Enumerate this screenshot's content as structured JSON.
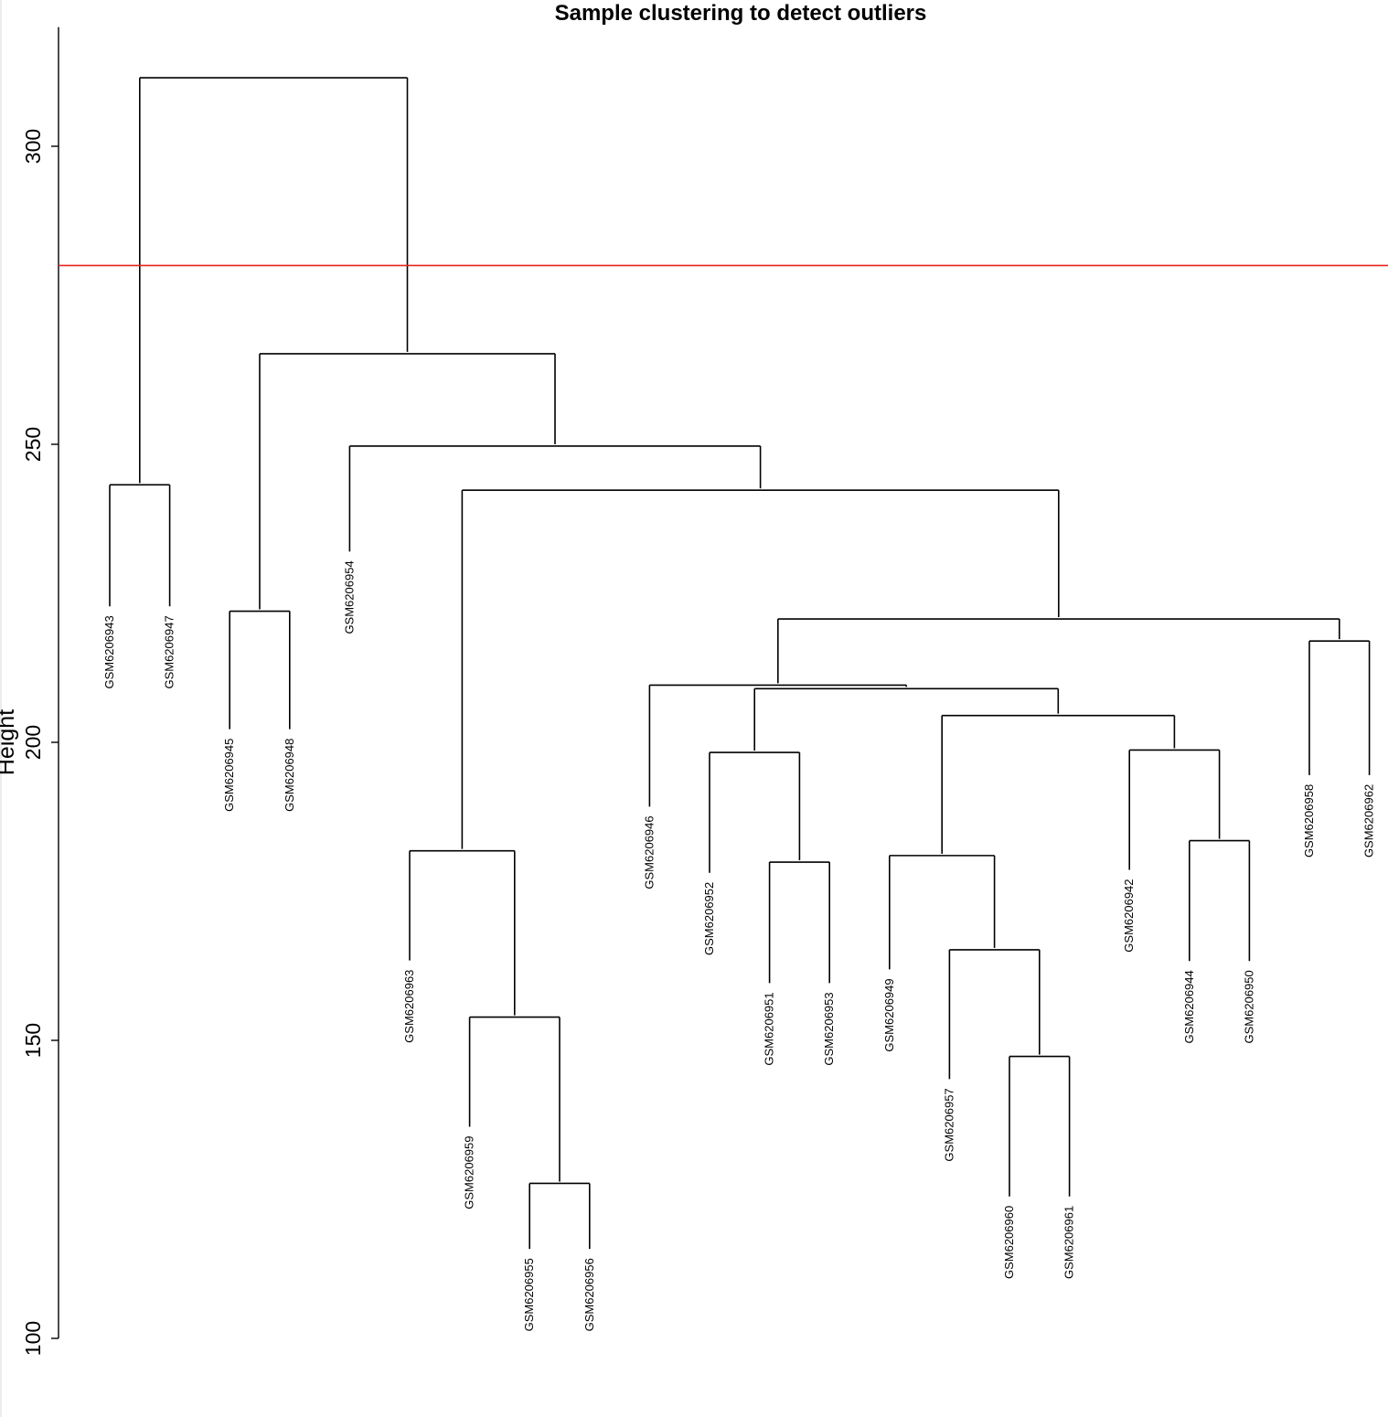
{
  "chart_data": {
    "type": "dendrogram",
    "title": "Sample clustering to detect outliers",
    "ylabel": "Height",
    "xlabel": "",
    "ylim": [
      100,
      320
    ],
    "yticks": [
      100,
      150,
      200,
      250,
      300
    ],
    "cut_height": 280,
    "colors": {
      "branches": "#000000",
      "cut_line": "#e8231f"
    },
    "leaves": [
      {
        "name": "GSM6206943",
        "height": 222.5
      },
      {
        "name": "GSM6206947",
        "height": 222.5
      },
      {
        "name": "GSM6206945",
        "height": 201.9
      },
      {
        "name": "GSM6206948",
        "height": 201.9
      },
      {
        "name": "GSM6206954",
        "height": 231.7
      },
      {
        "name": "GSM6206963",
        "height": 163.1
      },
      {
        "name": "GSM6206959",
        "height": 135.2
      },
      {
        "name": "GSM6206955",
        "height": 114.7
      },
      {
        "name": "GSM6206956",
        "height": 114.7
      },
      {
        "name": "GSM6206946",
        "height": 188.9
      },
      {
        "name": "GSM6206952",
        "height": 177.8
      },
      {
        "name": "GSM6206951",
        "height": 159.3
      },
      {
        "name": "GSM6206953",
        "height": 159.3
      },
      {
        "name": "GSM6206949",
        "height": 161.6
      },
      {
        "name": "GSM6206957",
        "height": 143.2
      },
      {
        "name": "GSM6206960",
        "height": 123.5
      },
      {
        "name": "GSM6206961",
        "height": 123.5
      },
      {
        "name": "GSM6206942",
        "height": 178.3
      },
      {
        "name": "GSM6206944",
        "height": 163.0
      },
      {
        "name": "GSM6206950",
        "height": 163.0
      },
      {
        "name": "GSM6206958",
        "height": 194.2
      },
      {
        "name": "GSM6206962",
        "height": 194.2
      }
    ],
    "merges": [
      {
        "id": "m1",
        "left": "L0",
        "right": "L1",
        "height": 243.2
      },
      {
        "id": "m2",
        "left": "L2",
        "right": "L3",
        "height": 222.0
      },
      {
        "id": "m3",
        "left": "L7",
        "right": "L8",
        "height": 126.0
      },
      {
        "id": "m4",
        "left": "L6",
        "right": "m3",
        "height": 153.9
      },
      {
        "id": "m5",
        "left": "L5",
        "right": "m4",
        "height": 181.8
      },
      {
        "id": "m6",
        "left": "L11",
        "right": "L12",
        "height": 179.9
      },
      {
        "id": "m7",
        "left": "L10",
        "right": "m6",
        "height": 198.3
      },
      {
        "id": "m8",
        "left": "L15",
        "right": "L16",
        "height": 147.3
      },
      {
        "id": "m9",
        "left": "L14",
        "right": "m8",
        "height": 165.2
      },
      {
        "id": "m10",
        "left": "L13",
        "right": "m9",
        "height": 181.0
      },
      {
        "id": "m11",
        "left": "L18",
        "right": "L19",
        "height": 183.5
      },
      {
        "id": "m12",
        "left": "L17",
        "right": "m11",
        "height": 198.7
      },
      {
        "id": "m13",
        "left": "m10",
        "right": "m12",
        "height": 204.5
      },
      {
        "id": "m14",
        "left": "m7",
        "right": "m13",
        "height": 209.0
      },
      {
        "id": "m15",
        "left": "L9",
        "right": "m14",
        "height": 209.6
      },
      {
        "id": "m16",
        "left": "L20",
        "right": "L21",
        "height": 217.0
      },
      {
        "id": "m17",
        "left": "m15",
        "right": "m16",
        "height": 220.7
      },
      {
        "id": "m18",
        "left": "m5",
        "right": "m17",
        "height": 242.3
      },
      {
        "id": "m19",
        "left": "L4",
        "right": "m18",
        "height": 249.7
      },
      {
        "id": "m20",
        "left": "m2",
        "right": "m19",
        "height": 265.2
      },
      {
        "id": "m21",
        "left": "m1",
        "right": "m20",
        "height": 311.5
      }
    ]
  }
}
